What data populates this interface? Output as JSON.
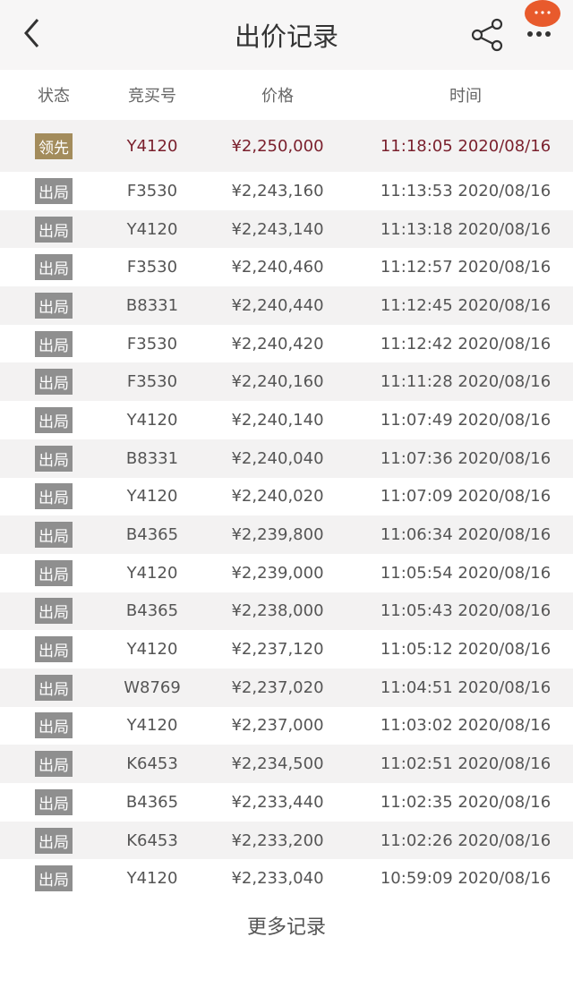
{
  "header": {
    "title": "出价记录",
    "back_icon": "chevron-left-icon",
    "share_icon": "share-icon",
    "more_icon": "more-dots-icon",
    "badge_color": "#e85a2c"
  },
  "table": {
    "columns": [
      "状态",
      "竞买号",
      "价格",
      "时间"
    ],
    "rows": [
      {
        "status": "领先",
        "bidder": "Y4120",
        "price": "¥2,250,000",
        "time": "11:18:05 2020/08/16"
      },
      {
        "status": "出局",
        "bidder": "F3530",
        "price": "¥2,243,160",
        "time": "11:13:53 2020/08/16"
      },
      {
        "status": "出局",
        "bidder": "Y4120",
        "price": "¥2,243,140",
        "time": "11:13:18 2020/08/16"
      },
      {
        "status": "出局",
        "bidder": "F3530",
        "price": "¥2,240,460",
        "time": "11:12:57 2020/08/16"
      },
      {
        "status": "出局",
        "bidder": "B8331",
        "price": "¥2,240,440",
        "time": "11:12:45 2020/08/16"
      },
      {
        "status": "出局",
        "bidder": "F3530",
        "price": "¥2,240,420",
        "time": "11:12:42 2020/08/16"
      },
      {
        "status": "出局",
        "bidder": "F3530",
        "price": "¥2,240,160",
        "time": "11:11:28 2020/08/16"
      },
      {
        "status": "出局",
        "bidder": "Y4120",
        "price": "¥2,240,140",
        "time": "11:07:49 2020/08/16"
      },
      {
        "status": "出局",
        "bidder": "B8331",
        "price": "¥2,240,040",
        "time": "11:07:36 2020/08/16"
      },
      {
        "status": "出局",
        "bidder": "Y4120",
        "price": "¥2,240,020",
        "time": "11:07:09 2020/08/16"
      },
      {
        "status": "出局",
        "bidder": "B4365",
        "price": "¥2,239,800",
        "time": "11:06:34 2020/08/16"
      },
      {
        "status": "出局",
        "bidder": "Y4120",
        "price": "¥2,239,000",
        "time": "11:05:54 2020/08/16"
      },
      {
        "status": "出局",
        "bidder": "B4365",
        "price": "¥2,238,000",
        "time": "11:05:43 2020/08/16"
      },
      {
        "status": "出局",
        "bidder": "Y4120",
        "price": "¥2,237,120",
        "time": "11:05:12 2020/08/16"
      },
      {
        "status": "出局",
        "bidder": "W8769",
        "price": "¥2,237,020",
        "time": "11:04:51 2020/08/16"
      },
      {
        "status": "出局",
        "bidder": "Y4120",
        "price": "¥2,237,000",
        "time": "11:03:02 2020/08/16"
      },
      {
        "status": "出局",
        "bidder": "K6453",
        "price": "¥2,234,500",
        "time": "11:02:51 2020/08/16"
      },
      {
        "status": "出局",
        "bidder": "B4365",
        "price": "¥2,233,440",
        "time": "11:02:35 2020/08/16"
      },
      {
        "status": "出局",
        "bidder": "K6453",
        "price": "¥2,233,200",
        "time": "11:02:26 2020/08/16"
      },
      {
        "status": "出局",
        "bidder": "Y4120",
        "price": "¥2,233,040",
        "time": "10:59:09 2020/08/16"
      }
    ]
  },
  "more_records": "更多记录"
}
